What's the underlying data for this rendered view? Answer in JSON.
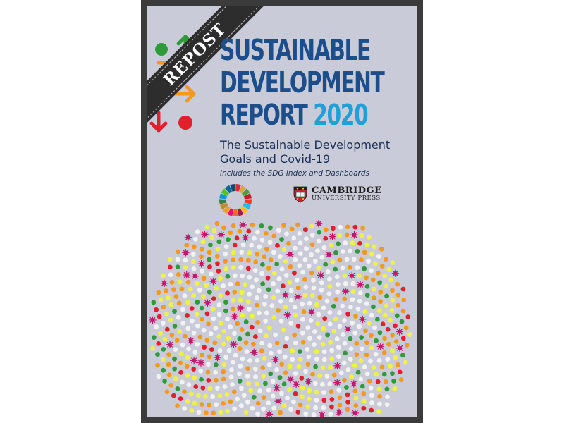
{
  "ribbon": {
    "label": "REPOST"
  },
  "title": {
    "line1": "SUSTAINABLE",
    "line2": "DEVELOPMENT",
    "line3_word": "REPORT",
    "year": "2020"
  },
  "subtitle": {
    "line1": "The Sustainable Development",
    "line2": "Goals and Covid-19"
  },
  "tagline": "Includes the SDG Index and Dashboards",
  "publisher": {
    "name_line1": "CAMBRIDGE",
    "name_line2": "UNIVERSITY PRESS"
  },
  "colors": {
    "green": "#2e9a3a",
    "yellow": "#f4c20d",
    "orange": "#f39a1e",
    "red": "#e0202d",
    "background": "#c9ccd8",
    "title_blue": "#1d4e8c",
    "year_blue": "#1fa0d6",
    "dot_white": "#f2f2f2",
    "dot_yellow": "#eff04a",
    "virus": "#c2186b"
  },
  "icons": [
    "green-dot-icon",
    "green-up-arrow-icon",
    "orange-diagonal-arrow-icon",
    "yellow-dot-icon",
    "orange-dot-icon",
    "orange-right-arrow-icon",
    "red-down-arrow-icon",
    "red-dot-icon",
    "sdg-wheel-icon",
    "cambridge-shield-icon",
    "virus-icon"
  ]
}
